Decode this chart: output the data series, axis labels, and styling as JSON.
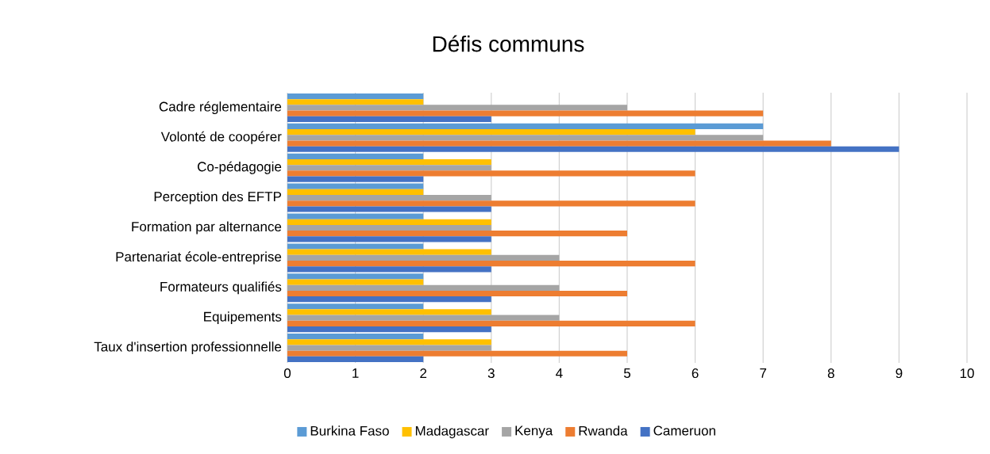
{
  "chart_data": {
    "type": "bar",
    "orientation": "horizontal",
    "title": "Défis communs",
    "categories": [
      "Cadre réglementaire",
      "Volonté de coopérer",
      "Co-pédagogie",
      "Perception des EFTP",
      "Formation par alternance",
      "Partenariat école-entreprise",
      "Formateurs qualifiés",
      "Equipements",
      "Taux d'insertion professionnelle"
    ],
    "series": [
      {
        "name": "Burkina Faso",
        "color": "#5b9bd5",
        "values": [
          2,
          7,
          2,
          2,
          2,
          2,
          2,
          2,
          2
        ]
      },
      {
        "name": "Madagascar",
        "color": "#ffc000",
        "values": [
          2,
          6,
          3,
          2,
          3,
          3,
          2,
          3,
          3
        ]
      },
      {
        "name": "Kenya",
        "color": "#a5a5a5",
        "values": [
          5,
          7,
          3,
          3,
          3,
          4,
          4,
          4,
          3
        ]
      },
      {
        "name": "Rwanda",
        "color": "#ed7d31",
        "values": [
          7,
          8,
          6,
          6,
          5,
          6,
          5,
          6,
          5
        ]
      },
      {
        "name": "Cameruon",
        "color": "#4472c4",
        "values": [
          3,
          9,
          2,
          3,
          3,
          3,
          3,
          3,
          2
        ]
      }
    ],
    "xlim": [
      0,
      10
    ],
    "xticks": [
      0,
      1,
      2,
      3,
      4,
      5,
      6,
      7,
      8,
      9,
      10
    ],
    "grid": "x",
    "legend": "bottom"
  }
}
